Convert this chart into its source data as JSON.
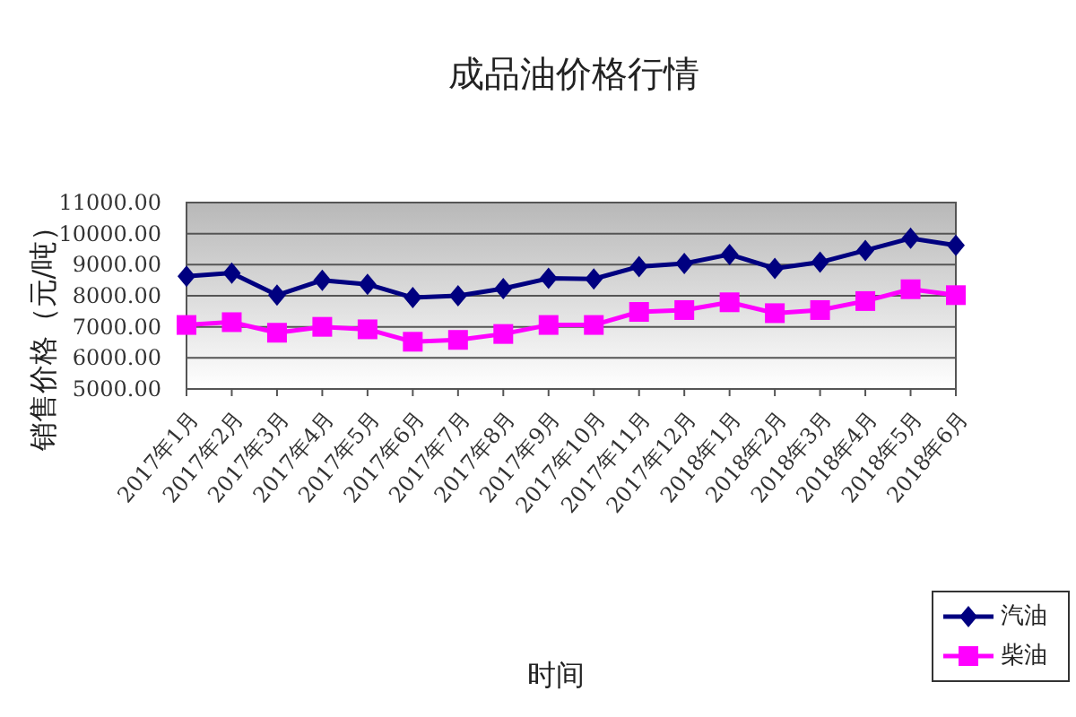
{
  "chart_data": {
    "type": "line",
    "title": "成品油价格行情",
    "xlabel": "时间",
    "ylabel": "销售价格（元/吨）",
    "categories": [
      "2017年1月",
      "2017年2月",
      "2017年3月",
      "2017年4月",
      "2017年5月",
      "2017年6月",
      "2017年7月",
      "2017年8月",
      "2017年9月",
      "2017年10月",
      "2017年11月",
      "2017年12月",
      "2018年1月",
      "2018年2月",
      "2018年3月",
      "2018年4月",
      "2018年5月",
      "2018年6月"
    ],
    "series": [
      {
        "name": "汽油",
        "color": "#000080",
        "marker": "diamond",
        "values": [
          8630,
          8730,
          8020,
          8500,
          8370,
          7940,
          8000,
          8230,
          8560,
          8540,
          8940,
          9040,
          9330,
          8880,
          9080,
          9460,
          9850,
          9620
        ]
      },
      {
        "name": "柴油",
        "color": "#ff00ff",
        "marker": "square",
        "values": [
          7060,
          7150,
          6810,
          7000,
          6920,
          6520,
          6580,
          6770,
          7060,
          7060,
          7480,
          7540,
          7790,
          7440,
          7540,
          7830,
          8210,
          8020
        ]
      }
    ],
    "ylim": [
      5000,
      11000
    ],
    "yticks": [
      {
        "value": 5000,
        "label": "5000.00"
      },
      {
        "value": 6000,
        "label": "6000.00"
      },
      {
        "value": 7000,
        "label": "7000.00"
      },
      {
        "value": 8000,
        "label": "8000.00"
      },
      {
        "value": 9000,
        "label": "9000.00"
      },
      {
        "value": 10000,
        "label": "10000.00"
      },
      {
        "value": 11000,
        "label": "11000.00"
      }
    ],
    "grid": "y",
    "legend": "bottom right",
    "line_style": "solid"
  }
}
